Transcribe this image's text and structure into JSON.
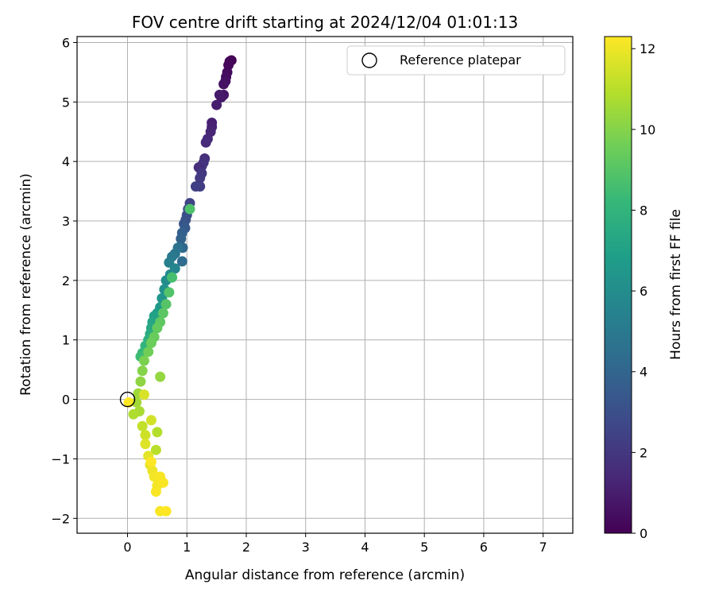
{
  "chart_data": {
    "type": "scatter",
    "title": "FOV centre drift starting at 2024/12/04 01:01:13",
    "xlabel": "Angular distance from reference (arcmin)",
    "ylabel": "Rotation from reference (arcmin)",
    "xlim": [
      -0.85,
      7.5
    ],
    "ylim": [
      -2.25,
      6.1
    ],
    "xticks": [
      0,
      1,
      2,
      3,
      4,
      5,
      6,
      7
    ],
    "xtick_labels": [
      "0",
      "1",
      "2",
      "3",
      "4",
      "5",
      "6",
      "7"
    ],
    "yticks": [
      -2,
      -1,
      0,
      1,
      2,
      3,
      4,
      5,
      6
    ],
    "ytick_labels": [
      "−2",
      "−1",
      "0",
      "1",
      "2",
      "3",
      "4",
      "5",
      "6"
    ],
    "grid": true,
    "legend": {
      "placement": "top-right",
      "entries": [
        "Reference platepar"
      ]
    },
    "reference_point": {
      "x": 0,
      "y": 0,
      "label": "Reference platepar"
    },
    "colorbar": {
      "label": "Hours from first FF file",
      "min": 0,
      "max": 12.3,
      "ticks": [
        0,
        2,
        4,
        6,
        8,
        10,
        12
      ],
      "tick_labels": [
        "0",
        "2",
        "4",
        "6",
        "8",
        "10",
        "12"
      ],
      "colormap": "viridis",
      "stops": [
        "#440154",
        "#482878",
        "#3e4989",
        "#31688e",
        "#26828e",
        "#1f9e89",
        "#35b779",
        "#6ece58",
        "#b5de2b",
        "#fde725"
      ]
    },
    "points": [
      {
        "x": 1.75,
        "y": 5.7,
        "c": 0.0
      },
      {
        "x": 1.72,
        "y": 5.68,
        "c": 0.1
      },
      {
        "x": 1.7,
        "y": 5.62,
        "c": 0.2
      },
      {
        "x": 1.68,
        "y": 5.5,
        "c": 0.3
      },
      {
        "x": 1.66,
        "y": 5.42,
        "c": 0.4
      },
      {
        "x": 1.65,
        "y": 5.35,
        "c": 0.5
      },
      {
        "x": 1.62,
        "y": 5.3,
        "c": 0.6
      },
      {
        "x": 1.62,
        "y": 5.12,
        "c": 0.7
      },
      {
        "x": 1.58,
        "y": 5.08,
        "c": 0.8
      },
      {
        "x": 1.55,
        "y": 5.12,
        "c": 0.9
      },
      {
        "x": 1.5,
        "y": 4.95,
        "c": 1.0
      },
      {
        "x": 1.42,
        "y": 4.65,
        "c": 1.1
      },
      {
        "x": 1.42,
        "y": 4.58,
        "c": 1.2
      },
      {
        "x": 1.4,
        "y": 4.5,
        "c": 1.3
      },
      {
        "x": 1.35,
        "y": 4.38,
        "c": 1.4
      },
      {
        "x": 1.32,
        "y": 4.32,
        "c": 1.5
      },
      {
        "x": 1.3,
        "y": 4.05,
        "c": 1.7
      },
      {
        "x": 1.28,
        "y": 3.98,
        "c": 1.8
      },
      {
        "x": 1.25,
        "y": 3.92,
        "c": 1.9
      },
      {
        "x": 1.2,
        "y": 3.9,
        "c": 1.6
      },
      {
        "x": 1.25,
        "y": 3.8,
        "c": 2.0
      },
      {
        "x": 1.22,
        "y": 3.72,
        "c": 2.1
      },
      {
        "x": 1.22,
        "y": 3.58,
        "c": 2.2
      },
      {
        "x": 1.15,
        "y": 3.58,
        "c": 2.3
      },
      {
        "x": 1.05,
        "y": 3.3,
        "c": 2.5
      },
      {
        "x": 1.02,
        "y": 3.2,
        "c": 2.7
      },
      {
        "x": 1.0,
        "y": 3.1,
        "c": 2.9
      },
      {
        "x": 0.98,
        "y": 3.02,
        "c": 3.1
      },
      {
        "x": 0.95,
        "y": 2.95,
        "c": 3.3
      },
      {
        "x": 0.97,
        "y": 2.88,
        "c": 3.5
      },
      {
        "x": 0.92,
        "y": 2.8,
        "c": 3.7
      },
      {
        "x": 0.9,
        "y": 2.7,
        "c": 3.9
      },
      {
        "x": 0.93,
        "y": 2.55,
        "c": 4.1
      },
      {
        "x": 0.92,
        "y": 2.32,
        "c": 4.3
      },
      {
        "x": 0.85,
        "y": 2.55,
        "c": 4.6
      },
      {
        "x": 0.8,
        "y": 2.45,
        "c": 4.8
      },
      {
        "x": 0.75,
        "y": 2.4,
        "c": 5.0
      },
      {
        "x": 0.7,
        "y": 2.3,
        "c": 5.3
      },
      {
        "x": 0.8,
        "y": 2.2,
        "c": 5.6
      },
      {
        "x": 0.72,
        "y": 2.1,
        "c": 5.8
      },
      {
        "x": 0.65,
        "y": 2.0,
        "c": 6.0
      },
      {
        "x": 0.62,
        "y": 1.85,
        "c": 6.2
      },
      {
        "x": 0.58,
        "y": 1.7,
        "c": 6.4
      },
      {
        "x": 0.55,
        "y": 1.55,
        "c": 6.6
      },
      {
        "x": 0.5,
        "y": 1.45,
        "c": 6.8
      },
      {
        "x": 0.45,
        "y": 1.4,
        "c": 7.0
      },
      {
        "x": 0.42,
        "y": 1.3,
        "c": 7.2
      },
      {
        "x": 0.4,
        "y": 1.2,
        "c": 7.4
      },
      {
        "x": 0.38,
        "y": 1.1,
        "c": 7.6
      },
      {
        "x": 0.35,
        "y": 1.0,
        "c": 7.8
      },
      {
        "x": 0.3,
        "y": 0.9,
        "c": 8.0
      },
      {
        "x": 0.25,
        "y": 0.78,
        "c": 8.2
      },
      {
        "x": 0.22,
        "y": 0.72,
        "c": 8.4
      },
      {
        "x": 1.05,
        "y": 3.2,
        "c": 8.8
      },
      {
        "x": 0.75,
        "y": 2.05,
        "c": 8.6
      },
      {
        "x": 0.7,
        "y": 1.8,
        "c": 8.9
      },
      {
        "x": 0.65,
        "y": 1.6,
        "c": 9.0
      },
      {
        "x": 0.6,
        "y": 1.45,
        "c": 9.1
      },
      {
        "x": 0.55,
        "y": 1.3,
        "c": 9.2
      },
      {
        "x": 0.5,
        "y": 1.2,
        "c": 9.3
      },
      {
        "x": 0.45,
        "y": 1.05,
        "c": 9.4
      },
      {
        "x": 0.4,
        "y": 0.95,
        "c": 9.5
      },
      {
        "x": 0.35,
        "y": 0.8,
        "c": 9.6
      },
      {
        "x": 0.28,
        "y": 0.65,
        "c": 9.8
      },
      {
        "x": 0.25,
        "y": 0.48,
        "c": 10.0
      },
      {
        "x": 0.22,
        "y": 0.3,
        "c": 10.2
      },
      {
        "x": 0.55,
        "y": 0.38,
        "c": 10.3
      },
      {
        "x": 0.18,
        "y": 0.1,
        "c": 10.5
      },
      {
        "x": 0.15,
        "y": -0.05,
        "c": 10.6
      },
      {
        "x": 0.2,
        "y": -0.2,
        "c": 10.7
      },
      {
        "x": 0.1,
        "y": -0.25,
        "c": 10.8
      },
      {
        "x": 0.5,
        "y": -0.55,
        "c": 10.9
      },
      {
        "x": 0.48,
        "y": -0.85,
        "c": 11.0
      },
      {
        "x": 0.25,
        "y": -0.45,
        "c": 11.2
      },
      {
        "x": 0.3,
        "y": -0.6,
        "c": 11.4
      },
      {
        "x": 0.4,
        "y": -0.35,
        "c": 11.5
      },
      {
        "x": 0.28,
        "y": 0.08,
        "c": 11.6
      },
      {
        "x": 0.3,
        "y": -0.75,
        "c": 11.7
      },
      {
        "x": 0.35,
        "y": -0.95,
        "c": 11.8
      },
      {
        "x": 0.38,
        "y": -1.1,
        "c": 11.9
      },
      {
        "x": 0.42,
        "y": -1.2,
        "c": 12.0
      },
      {
        "x": 0.45,
        "y": -1.3,
        "c": 12.1
      },
      {
        "x": 0.5,
        "y": -1.45,
        "c": 12.1
      },
      {
        "x": 0.55,
        "y": -1.3,
        "c": 12.2
      },
      {
        "x": 0.6,
        "y": -1.4,
        "c": 12.2
      },
      {
        "x": 0.48,
        "y": -1.55,
        "c": 12.2
      },
      {
        "x": 0.55,
        "y": -1.88,
        "c": 12.2
      },
      {
        "x": 0.65,
        "y": -1.88,
        "c": 12.3
      },
      {
        "x": 0.02,
        "y": -0.05,
        "c": 12.3
      },
      {
        "x": 0.4,
        "y": -1.05,
        "c": 12.3
      }
    ]
  }
}
